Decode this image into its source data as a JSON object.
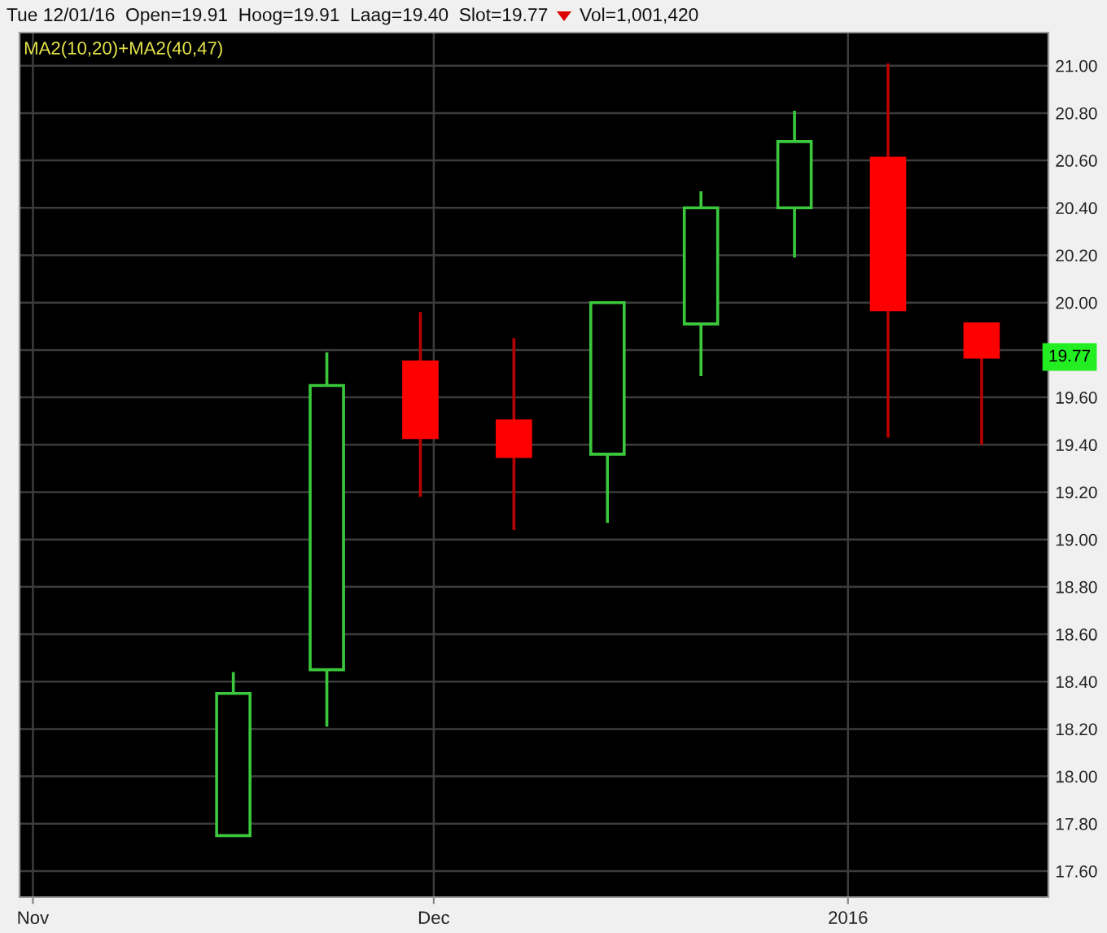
{
  "chart_data": {
    "type": "candlestick",
    "title": "Tue 12/01/16  Open=19.91  Hoog=19.91  Laag=19.40  Slot=19.77",
    "subtitle": "Vol=1,001,420",
    "x": [
      "2015-11-16",
      "2015-11-23",
      "2015-11-30",
      "2015-12-07",
      "2015-12-14",
      "2015-12-21",
      "2015-12-28",
      "2016-01-04",
      "2016-01-11"
    ],
    "ohlc": [
      [
        17.75,
        18.44,
        17.75,
        18.35
      ],
      [
        18.45,
        19.79,
        18.21,
        19.65
      ],
      [
        19.75,
        19.96,
        19.18,
        19.43
      ],
      [
        19.5,
        19.85,
        19.04,
        19.35
      ],
      [
        19.36,
        20.0,
        19.07,
        20.0
      ],
      [
        19.91,
        20.47,
        19.69,
        20.4
      ],
      [
        20.4,
        20.81,
        20.19,
        20.68
      ],
      [
        20.61,
        21.01,
        19.43,
        19.97
      ],
      [
        19.91,
        19.91,
        19.4,
        19.77
      ]
    ],
    "colors": [
      "#3cc83c",
      "#3cc83c",
      "#ff0000",
      "#ff0000",
      "#3cc83c",
      "#3cc83c",
      "#3cc83c",
      "#ff0000",
      "#ff0000"
    ],
    "xlim": [
      "2015-10-31",
      "2016-01-16"
    ],
    "xticks": [
      {
        "value": "2015-11-01",
        "label": "Nov"
      },
      {
        "value": "2015-12-01",
        "label": "Dec"
      },
      {
        "value": "2016-01-01",
        "label": "2016"
      }
    ],
    "ylim": [
      17.49,
      21.14
    ],
    "yticks": [
      {
        "value": 17.6,
        "label": "17.60"
      },
      {
        "value": 17.8,
        "label": "17.80"
      },
      {
        "value": 18.0,
        "label": "18.00"
      },
      {
        "value": 18.2,
        "label": "18.20"
      },
      {
        "value": 18.4,
        "label": "18.40"
      },
      {
        "value": 18.6,
        "label": "18.60"
      },
      {
        "value": 18.8,
        "label": "18.80"
      },
      {
        "value": 19.0,
        "label": "19.00"
      },
      {
        "value": 19.2,
        "label": "19.20"
      },
      {
        "value": 19.4,
        "label": "19.40"
      },
      {
        "value": 19.6,
        "label": "19.60"
      },
      {
        "value": 19.8,
        "label": null
      },
      {
        "value": 20.0,
        "label": "20.00"
      },
      {
        "value": 20.2,
        "label": "20.20"
      },
      {
        "value": 20.4,
        "label": "20.40"
      },
      {
        "value": 20.6,
        "label": "20.60"
      },
      {
        "value": 20.8,
        "label": "20.80"
      },
      {
        "value": 21.0,
        "label": "21.00"
      }
    ],
    "grid": true,
    "annotations": [
      "MA2(10,20)+MA2(40,47)",
      {
        "text": "19.77",
        "y": 19.77
      }
    ]
  }
}
